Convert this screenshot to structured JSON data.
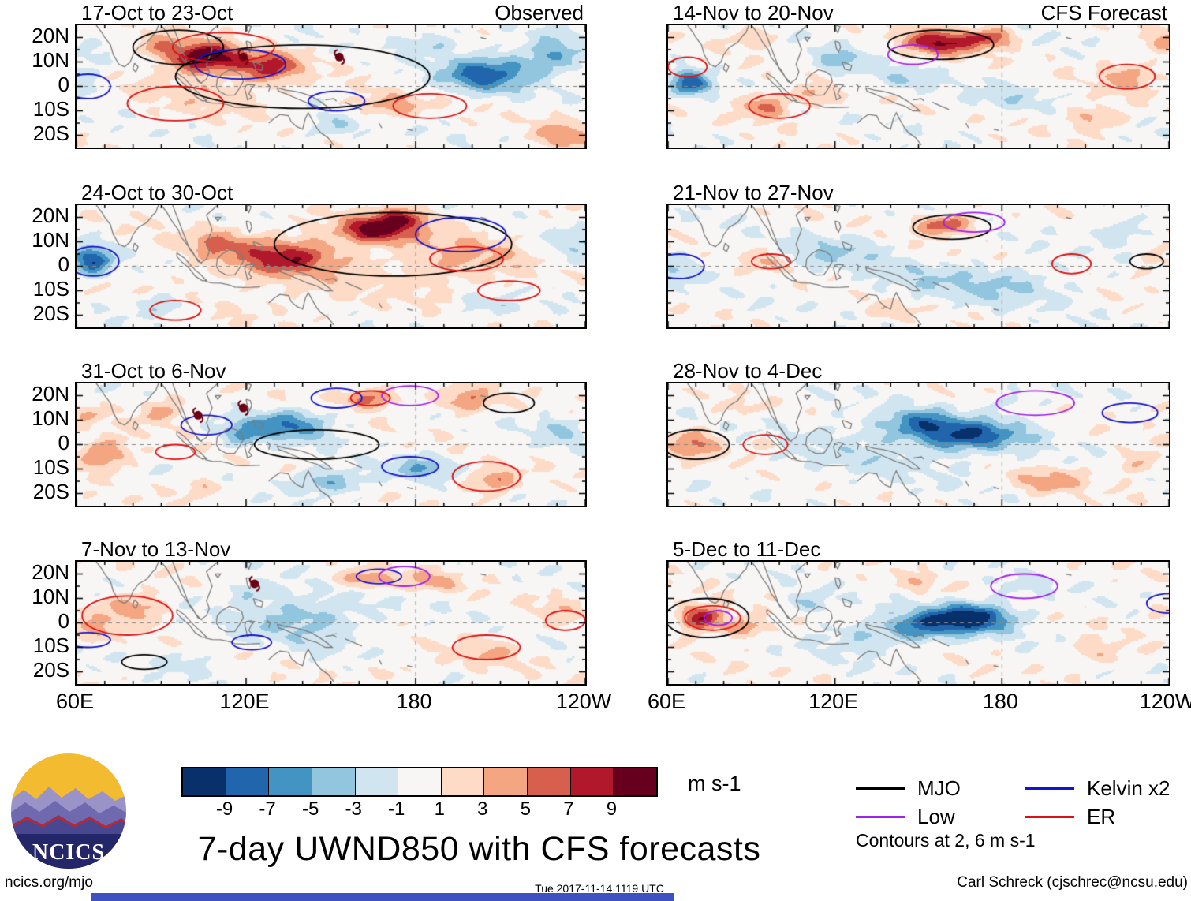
{
  "main_title": "7-day UWND850 with CFS forecasts",
  "logo_text": "NCICS",
  "colorbar": {
    "tick_labels": [
      "-9",
      "-7",
      "-5",
      "-3",
      "-1",
      "1",
      "3",
      "5",
      "7",
      "9"
    ],
    "unit": "m s-1",
    "colors": [
      "#08306b",
      "#2166ac",
      "#4393c3",
      "#92c5de",
      "#d1e5f0",
      "#f8f6f4",
      "#fddbc7",
      "#f4a582",
      "#d6604d",
      "#b2182b",
      "#67001f"
    ]
  },
  "legend": {
    "items": [
      {
        "label": "MJO",
        "color": "#000000"
      },
      {
        "label": "Kelvin x2",
        "color": "#1414cc"
      },
      {
        "label": "Low",
        "color": "#a020f0"
      },
      {
        "label": "ER",
        "color": "#dd1111"
      }
    ],
    "note": "Contours at 2, 6 m s-1"
  },
  "footer": {
    "site": "ncics.org/mjo",
    "timestamp": "Tue 2017-11-14 1119 UTC",
    "credit": "Carl Schreck (cjschrec@ncsu.edu)"
  },
  "chart_data": {
    "type": "heatmap",
    "title": "7-day UWND850 with CFS forecasts",
    "variable": "UWND850 zonal wind anomaly",
    "units": "m s-1",
    "lon_range": [
      60,
      240
    ],
    "lat_range": [
      -25,
      25
    ],
    "levels": [
      -9,
      -7,
      -5,
      -3,
      -1,
      1,
      3,
      5,
      7,
      9
    ],
    "x_ticks": [
      "60E",
      "120E",
      "180",
      "120W"
    ],
    "x_tick_lons": [
      60,
      120,
      180,
      240
    ],
    "y_ticks": [
      "20N",
      "10N",
      "0",
      "10S",
      "20S"
    ],
    "y_tick_lats": [
      20,
      10,
      0,
      -10,
      -20
    ],
    "contour_note": "Contours at 2, 6 m s-1",
    "panels": [
      {
        "title": "17-Oct to 23-Oct",
        "corner_label": "Observed",
        "features": [
          [
            105,
            12,
            11,
            13,
            6
          ],
          [
            128,
            8,
            7,
            12,
            6
          ],
          [
            88,
            17,
            4,
            7,
            5
          ],
          [
            232,
            -20,
            4,
            10,
            6
          ],
          [
            170,
            -8,
            4,
            13,
            5
          ],
          [
            205,
            5,
            -8,
            16,
            7
          ],
          [
            228,
            13,
            -5,
            12,
            7
          ],
          [
            64,
            4,
            -3,
            6,
            8
          ],
          [
            150,
            -16,
            -3,
            10,
            5
          ],
          [
            108,
            -2,
            2,
            25,
            10
          ],
          [
            185,
            18,
            -3,
            10,
            5
          ]
        ],
        "contours": [
          [
            "MJO",
            140,
            4,
            45,
            13
          ],
          [
            "MJO",
            96,
            16,
            16,
            7
          ],
          [
            "Kelvin",
            118,
            9,
            16,
            6
          ],
          [
            "Kelvin",
            152,
            -6,
            10,
            4
          ],
          [
            "Kelvin",
            64,
            0,
            8,
            5
          ],
          [
            "ER",
            95,
            -7,
            17,
            7
          ],
          [
            "ER",
            185,
            -8,
            13,
            5
          ],
          [
            "ER",
            112,
            16,
            18,
            6
          ]
        ],
        "storms": [
          [
            119,
            12
          ],
          [
            153,
            12
          ]
        ]
      },
      {
        "title": "24-Oct to 30-Oct",
        "features": [
          [
            66,
            2,
            -9,
            7,
            6
          ],
          [
            134,
            4,
            7,
            17,
            7
          ],
          [
            166,
            15,
            10,
            13,
            5
          ],
          [
            110,
            9,
            4,
            10,
            6
          ],
          [
            198,
            3,
            3,
            20,
            10
          ],
          [
            90,
            -16,
            -3,
            10,
            5
          ],
          [
            205,
            -16,
            -3,
            12,
            5
          ],
          [
            236,
            8,
            -3,
            8,
            7
          ],
          [
            150,
            -2,
            1.5,
            55,
            18
          ],
          [
            176,
            20,
            6,
            10,
            4
          ]
        ],
        "contours": [
          [
            "MJO",
            172,
            9,
            42,
            13
          ],
          [
            "Kelvin",
            196,
            13,
            16,
            7
          ],
          [
            "Kelvin",
            66,
            2,
            9,
            6
          ],
          [
            "ER",
            95,
            -18,
            9,
            4
          ],
          [
            "ER",
            198,
            3,
            13,
            5
          ],
          [
            "ER",
            213,
            -10,
            11,
            4
          ]
        ],
        "storms": []
      },
      {
        "title": "31-Oct to 6-Nov",
        "features": [
          [
            135,
            8,
            -7,
            14,
            6
          ],
          [
            118,
            4,
            -4,
            8,
            5
          ],
          [
            164,
            19,
            6,
            10,
            4
          ],
          [
            198,
            18,
            5,
            10,
            5
          ],
          [
            70,
            -4,
            6,
            9,
            6
          ],
          [
            90,
            14,
            4,
            9,
            5
          ],
          [
            64,
            12,
            3,
            6,
            4
          ],
          [
            150,
            -15,
            -5,
            12,
            5
          ],
          [
            182,
            -10,
            -4,
            12,
            5
          ],
          [
            207,
            -15,
            5,
            10,
            5
          ],
          [
            230,
            6,
            -3,
            8,
            6
          ],
          [
            105,
            -18,
            3,
            8,
            4
          ]
        ],
        "contours": [
          [
            "MJO",
            145,
            0,
            22,
            6
          ],
          [
            "MJO",
            213,
            17,
            9,
            4
          ],
          [
            "Kelvin",
            106,
            8,
            9,
            4
          ],
          [
            "Kelvin",
            152,
            19,
            9,
            4
          ],
          [
            "Kelvin",
            178,
            -9,
            10,
            4
          ],
          [
            "ER",
            205,
            -13,
            12,
            6
          ],
          [
            "ER",
            95,
            -3,
            7,
            3
          ],
          [
            "Low",
            178,
            20,
            10,
            4
          ],
          [
            "ER",
            164,
            19,
            7,
            3
          ]
        ],
        "storms": [
          [
            103,
            12
          ],
          [
            119,
            15
          ]
        ]
      },
      {
        "title": "7-Nov to 13-Nov",
        "features": [
          [
            80,
            6,
            5,
            10,
            6
          ],
          [
            65,
            -3,
            4,
            6,
            5
          ],
          [
            140,
            2,
            -4,
            22,
            10
          ],
          [
            162,
            18,
            5,
            10,
            4
          ],
          [
            186,
            17,
            4,
            9,
            4
          ],
          [
            205,
            -12,
            3,
            12,
            6
          ],
          [
            100,
            -16,
            -2,
            10,
            5
          ],
          [
            230,
            4,
            2,
            10,
            6
          ],
          [
            120,
            13,
            -3,
            8,
            4
          ],
          [
            175,
            -20,
            2,
            10,
            4
          ]
        ],
        "contours": [
          [
            "ER",
            78,
            3,
            16,
            8
          ],
          [
            "ER",
            205,
            -10,
            12,
            5
          ],
          [
            "ER",
            233,
            1,
            7,
            4
          ],
          [
            "Kelvin",
            64,
            -7,
            8,
            3
          ],
          [
            "Kelvin",
            122,
            -8,
            7,
            3
          ],
          [
            "Kelvin",
            167,
            19,
            8,
            3
          ],
          [
            "Low",
            176,
            19,
            9,
            4
          ],
          [
            "MJO",
            84,
            -16,
            8,
            3
          ]
        ],
        "storms": [
          [
            123,
            16
          ]
        ]
      },
      {
        "title": "14-Nov to 20-Nov",
        "corner_label": "CFS Forecast",
        "features": [
          [
            158,
            18,
            9,
            13,
            5
          ],
          [
            176,
            20,
            6,
            8,
            4
          ],
          [
            68,
            1,
            -8,
            7,
            5
          ],
          [
            95,
            -8,
            6,
            8,
            5
          ],
          [
            113,
            -4,
            4,
            7,
            4
          ],
          [
            122,
            10,
            -4,
            10,
            5
          ],
          [
            90,
            20,
            3,
            8,
            4
          ],
          [
            225,
            4,
            4,
            10,
            6
          ],
          [
            213,
            -13,
            4,
            10,
            5
          ],
          [
            180,
            -5,
            -2,
            15,
            6
          ],
          [
            145,
            3,
            -3,
            10,
            5
          ],
          [
            238,
            18,
            3,
            7,
            5
          ]
        ],
        "contours": [
          [
            "MJO",
            158,
            17,
            19,
            6
          ],
          [
            "Low",
            148,
            13,
            9,
            4
          ],
          [
            "ER",
            67,
            8,
            7,
            4
          ],
          [
            "ER",
            100,
            -8,
            11,
            5
          ],
          [
            "ER",
            225,
            4,
            10,
            5
          ]
        ],
        "storms": []
      },
      {
        "title": "21-Nov to 27-Nov",
        "features": [
          [
            160,
            17,
            7,
            10,
            4
          ],
          [
            95,
            2,
            3,
            6,
            4
          ],
          [
            120,
            6,
            -3,
            16,
            7
          ],
          [
            182,
            -8,
            -3,
            22,
            8
          ],
          [
            65,
            0,
            -3,
            7,
            5
          ],
          [
            140,
            -18,
            2,
            10,
            4
          ],
          [
            222,
            14,
            -3,
            10,
            5
          ],
          [
            235,
            0,
            2,
            8,
            5
          ],
          [
            150,
            -5,
            -2,
            20,
            8
          ]
        ],
        "contours": [
          [
            "MJO",
            162,
            16,
            14,
            5
          ],
          [
            "MJO",
            232,
            2,
            6,
            3
          ],
          [
            "Low",
            170,
            18,
            11,
            4
          ],
          [
            "ER",
            97,
            2,
            7,
            3
          ],
          [
            "ER",
            205,
            1,
            7,
            4
          ],
          [
            "Kelvin",
            64,
            0,
            9,
            5
          ]
        ],
        "storms": []
      },
      {
        "title": "28-Nov to 4-Dec",
        "features": [
          [
            168,
            4,
            -8,
            19,
            6
          ],
          [
            150,
            9,
            -5,
            12,
            5
          ],
          [
            70,
            0,
            5,
            9,
            6
          ],
          [
            95,
            0,
            3,
            6,
            3
          ],
          [
            140,
            0,
            -2,
            40,
            14
          ],
          [
            196,
            -15,
            4,
            12,
            5
          ],
          [
            228,
            -8,
            3,
            8,
            5
          ],
          [
            185,
            18,
            -2,
            10,
            4
          ],
          [
            85,
            15,
            2,
            8,
            4
          ],
          [
            236,
            15,
            2,
            6,
            4
          ]
        ],
        "contours": [
          [
            "MJO",
            70,
            0,
            12,
            6
          ],
          [
            "ER",
            95,
            0,
            8,
            4
          ],
          [
            "Low",
            192,
            17,
            14,
            5
          ],
          [
            "Kelvin",
            226,
            13,
            10,
            4
          ]
        ],
        "storms": []
      },
      {
        "title": "5-Dec to 11-Dec",
        "features": [
          [
            168,
            2,
            -11,
            16,
            6
          ],
          [
            150,
            -2,
            -5,
            12,
            6
          ],
          [
            72,
            2,
            9,
            8,
            5
          ],
          [
            88,
            -2,
            5,
            8,
            4
          ],
          [
            130,
            -6,
            -3,
            15,
            7
          ],
          [
            188,
            15,
            -2,
            10,
            4
          ],
          [
            215,
            -12,
            3,
            10,
            5
          ],
          [
            150,
            16,
            2,
            8,
            4
          ],
          [
            236,
            5,
            2,
            6,
            4
          ],
          [
            110,
            8,
            -3,
            8,
            4
          ]
        ],
        "contours": [
          [
            "MJO",
            74,
            2,
            15,
            8
          ],
          [
            "ER",
            76,
            2,
            10,
            5
          ],
          [
            "Low",
            78,
            2,
            5,
            3
          ],
          [
            "Low",
            188,
            15,
            12,
            5
          ],
          [
            "Kelvin",
            240,
            8,
            8,
            4
          ]
        ],
        "storms": []
      }
    ]
  }
}
